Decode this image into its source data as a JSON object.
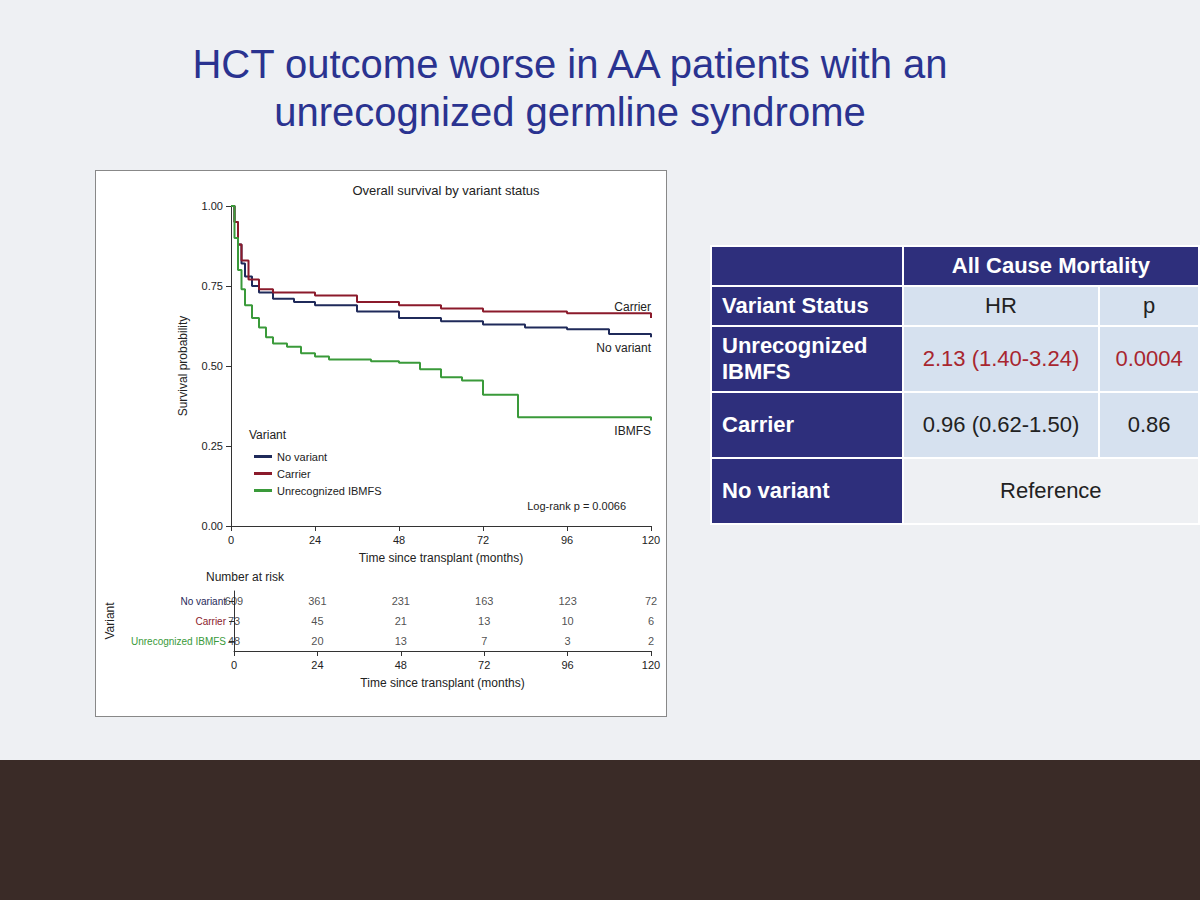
{
  "slide": {
    "title": "HCT outcome worse in AA patients with an unrecognized germline syndrome"
  },
  "chart_data": {
    "type": "line",
    "title": "Overall survival by variant status",
    "xlabel": "Time since transplant (months)",
    "ylabel": "Survival probability",
    "xlim": [
      0,
      120
    ],
    "xticks": [
      0,
      24,
      48,
      72,
      96,
      120
    ],
    "ylim": [
      0,
      1
    ],
    "yticks": [
      {
        "value": 0,
        "label": "0.00"
      },
      {
        "value": 0.25,
        "label": "0.25"
      },
      {
        "value": 0.5,
        "label": "0.50"
      },
      {
        "value": 0.75,
        "label": "0.75"
      },
      {
        "value": 1,
        "label": "1.00"
      }
    ],
    "grid": false,
    "legend": "bottom left",
    "legend_title": "Variant",
    "annotation": "Log-rank p = 0.0066",
    "series": [
      {
        "name": "No variant",
        "label": "No variant",
        "color": "#1f2a5a",
        "x": [
          0,
          1,
          2,
          3,
          4,
          6,
          8,
          12,
          18,
          24,
          36,
          48,
          60,
          72,
          84,
          96,
          108,
          120
        ],
        "values": [
          1,
          0.95,
          0.88,
          0.82,
          0.78,
          0.75,
          0.73,
          0.71,
          0.7,
          0.69,
          0.67,
          0.65,
          0.64,
          0.63,
          0.62,
          0.615,
          0.6,
          0.59
        ]
      },
      {
        "name": "Carrier",
        "label": "Carrier",
        "color": "#8b1a2b",
        "x": [
          0,
          1,
          2,
          3,
          5,
          8,
          12,
          24,
          36,
          48,
          60,
          72,
          96,
          120
        ],
        "values": [
          1,
          0.95,
          0.88,
          0.83,
          0.77,
          0.74,
          0.73,
          0.72,
          0.7,
          0.69,
          0.68,
          0.67,
          0.665,
          0.65
        ]
      },
      {
        "name": "Unrecognized IBMFS",
        "label": "IBMFS",
        "color": "#3a9a3a",
        "x": [
          0,
          1,
          2,
          3,
          4,
          6,
          8,
          10,
          12,
          16,
          20,
          24,
          28,
          40,
          48,
          54,
          60,
          66,
          72,
          82,
          120
        ],
        "values": [
          1,
          0.9,
          0.8,
          0.74,
          0.69,
          0.65,
          0.62,
          0.59,
          0.57,
          0.56,
          0.54,
          0.53,
          0.52,
          0.515,
          0.51,
          0.49,
          0.465,
          0.455,
          0.41,
          0.34,
          0.33
        ]
      }
    ],
    "risk_table": {
      "title": "Number at risk",
      "axis_title": "Variant",
      "x": [
        0,
        24,
        48,
        72,
        96,
        120
      ],
      "rows": [
        {
          "name": "No variant",
          "values": [
            609,
            361,
            231,
            163,
            123,
            72
          ]
        },
        {
          "name": "Carrier",
          "values": [
            73,
            45,
            21,
            13,
            10,
            6
          ]
        },
        {
          "name": "Unrecognized IBMFS",
          "values": [
            48,
            20,
            13,
            7,
            3,
            2
          ]
        }
      ]
    }
  },
  "table": {
    "title": "All Cause Mortality",
    "header": [
      "Variant Status",
      "HR",
      "p"
    ],
    "rows": [
      {
        "cells": [
          "Unrecognized IBMFS",
          "2.13 (1.40-3.24)",
          "0.0004"
        ],
        "color": "#a8262f"
      },
      {
        "cells": [
          "Carrier",
          "0.96 (0.62-1.50)",
          "0.86"
        ]
      },
      {
        "cells": [
          "No variant",
          "Reference"
        ]
      }
    ]
  }
}
